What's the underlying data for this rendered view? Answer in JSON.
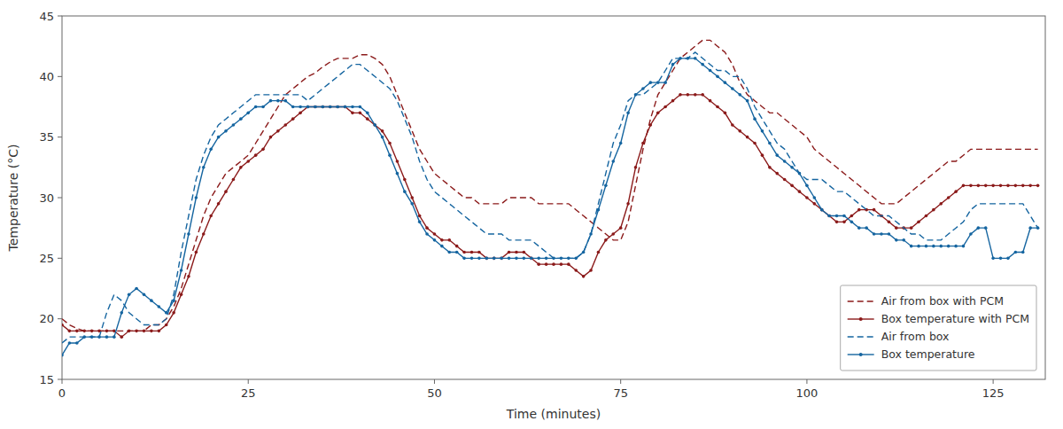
{
  "chart_data": {
    "type": "line",
    "xlabel": "Time (minutes)",
    "ylabel": "Temperature (°C)",
    "xlim": [
      0,
      132
    ],
    "ylim": [
      15,
      45
    ],
    "xticks": [
      0,
      25,
      50,
      75,
      100,
      125
    ],
    "yticks": [
      15,
      20,
      25,
      30,
      35,
      40,
      45
    ],
    "grid": false,
    "legend": "lower right",
    "x": [
      0,
      1,
      2,
      3,
      4,
      5,
      6,
      7,
      8,
      9,
      10,
      11,
      12,
      13,
      14,
      15,
      16,
      17,
      18,
      19,
      20,
      21,
      22,
      23,
      24,
      25,
      26,
      27,
      28,
      29,
      30,
      31,
      32,
      33,
      34,
      35,
      36,
      37,
      38,
      39,
      40,
      41,
      42,
      43,
      44,
      45,
      46,
      47,
      48,
      49,
      50,
      51,
      52,
      53,
      54,
      55,
      56,
      57,
      58,
      59,
      60,
      61,
      62,
      63,
      64,
      65,
      66,
      67,
      68,
      69,
      70,
      71,
      72,
      73,
      74,
      75,
      76,
      77,
      78,
      79,
      80,
      81,
      82,
      83,
      84,
      85,
      86,
      87,
      88,
      89,
      90,
      91,
      92,
      93,
      94,
      95,
      96,
      97,
      98,
      99,
      100,
      101,
      102,
      103,
      104,
      105,
      106,
      107,
      108,
      109,
      110,
      111,
      112,
      113,
      114,
      115,
      116,
      117,
      118,
      119,
      120,
      121,
      122,
      123,
      124,
      125,
      126,
      127,
      128,
      129,
      130,
      131
    ],
    "series": [
      {
        "name": "Air from box with PCM",
        "color": "#8B1A1A",
        "line_style": "dashed",
        "values": [
          20.0,
          19.5,
          19.2,
          19.0,
          19.0,
          19.0,
          19.0,
          19.0,
          19.0,
          19.0,
          19.0,
          19.0,
          19.5,
          19.5,
          20.0,
          21.0,
          22.5,
          24.5,
          26.5,
          28.5,
          30.0,
          31.0,
          32.0,
          32.5,
          33.0,
          33.5,
          34.5,
          35.5,
          36.5,
          37.5,
          38.5,
          39.0,
          39.5,
          40.0,
          40.3,
          40.8,
          41.2,
          41.5,
          41.5,
          41.5,
          41.8,
          41.8,
          41.5,
          41.0,
          40.0,
          38.5,
          37.0,
          35.5,
          34.0,
          33.0,
          32.0,
          31.5,
          31.0,
          30.5,
          30.0,
          30.0,
          29.5,
          29.5,
          29.5,
          29.5,
          30.0,
          30.0,
          30.0,
          30.0,
          29.5,
          29.5,
          29.5,
          29.5,
          29.5,
          29.0,
          28.5,
          28.0,
          27.5,
          27.0,
          26.5,
          26.5,
          28.0,
          31.0,
          34.0,
          36.5,
          38.5,
          39.5,
          40.5,
          41.5,
          42.0,
          42.5,
          43.0,
          43.0,
          42.5,
          42.0,
          41.0,
          39.5,
          38.5,
          38.0,
          37.5,
          37.0,
          37.0,
          36.5,
          36.0,
          35.5,
          35.0,
          34.0,
          33.5,
          33.0,
          32.5,
          32.0,
          31.5,
          31.0,
          30.5,
          30.0,
          29.5,
          29.5,
          29.5,
          30.0,
          30.5,
          31.0,
          31.5,
          32.0,
          32.5,
          33.0,
          33.0,
          33.5,
          34.0,
          34.0,
          34.0,
          34.0,
          34.0,
          34.0,
          34.0,
          34.0,
          34.0,
          34.0
        ]
      },
      {
        "name": "Box temperature with PCM",
        "color": "#8B1A1A",
        "line_style": "solid",
        "marker": "dot",
        "values": [
          19.5,
          19.0,
          19.0,
          19.0,
          19.0,
          19.0,
          19.0,
          19.0,
          18.5,
          19.0,
          19.0,
          19.0,
          19.0,
          19.0,
          19.5,
          20.5,
          22.0,
          23.5,
          25.5,
          27.0,
          28.5,
          29.5,
          30.5,
          31.5,
          32.5,
          33.0,
          33.5,
          34.0,
          35.0,
          35.5,
          36.0,
          36.5,
          37.0,
          37.5,
          37.5,
          37.5,
          37.5,
          37.5,
          37.5,
          37.0,
          37.0,
          36.5,
          36.0,
          35.5,
          34.5,
          33.0,
          31.5,
          30.0,
          28.5,
          27.5,
          27.0,
          26.5,
          26.5,
          26.0,
          25.5,
          25.5,
          25.5,
          25.0,
          25.0,
          25.0,
          25.5,
          25.5,
          25.5,
          25.0,
          24.5,
          24.5,
          24.5,
          24.5,
          24.5,
          24.0,
          23.5,
          24.0,
          25.5,
          26.5,
          27.0,
          27.5,
          29.5,
          32.5,
          34.5,
          36.0,
          37.0,
          37.5,
          38.0,
          38.5,
          38.5,
          38.5,
          38.5,
          38.0,
          37.5,
          37.0,
          36.0,
          35.5,
          35.0,
          34.5,
          33.5,
          32.5,
          32.0,
          31.5,
          31.0,
          30.5,
          30.0,
          29.5,
          29.0,
          28.5,
          28.0,
          28.0,
          28.5,
          29.0,
          29.0,
          29.0,
          28.5,
          28.0,
          27.5,
          27.5,
          27.5,
          28.0,
          28.5,
          29.0,
          29.5,
          30.0,
          30.5,
          31.0,
          31.0,
          31.0,
          31.0,
          31.0,
          31.0,
          31.0,
          31.0,
          31.0,
          31.0,
          31.0
        ]
      },
      {
        "name": "Air from box",
        "color": "#1565A0",
        "line_style": "dashed",
        "values": [
          18.0,
          18.5,
          18.5,
          18.5,
          18.5,
          18.5,
          20.5,
          22.0,
          21.5,
          20.5,
          20.0,
          19.5,
          19.5,
          19.5,
          20.0,
          22.0,
          25.5,
          28.5,
          31.5,
          33.5,
          35.0,
          36.0,
          36.5,
          37.0,
          37.5,
          38.0,
          38.5,
          38.5,
          38.5,
          38.5,
          38.5,
          38.5,
          38.5,
          38.0,
          38.5,
          39.0,
          39.5,
          40.0,
          40.5,
          41.0,
          41.0,
          40.5,
          40.0,
          39.5,
          39.0,
          38.0,
          36.5,
          35.0,
          33.0,
          31.5,
          30.5,
          30.0,
          29.5,
          29.0,
          28.5,
          28.0,
          27.5,
          27.0,
          27.0,
          27.0,
          26.5,
          26.5,
          26.5,
          26.5,
          26.0,
          25.5,
          25.0,
          25.0,
          25.0,
          25.0,
          25.5,
          27.0,
          29.5,
          32.0,
          34.5,
          36.0,
          38.0,
          38.5,
          38.5,
          39.0,
          39.5,
          40.5,
          41.5,
          41.5,
          41.5,
          42.0,
          41.5,
          41.0,
          40.5,
          40.5,
          40.0,
          40.0,
          39.0,
          37.5,
          36.5,
          35.5,
          34.5,
          34.0,
          33.0,
          32.0,
          31.5,
          31.5,
          31.5,
          31.0,
          30.5,
          30.5,
          30.0,
          29.5,
          29.0,
          28.5,
          28.5,
          28.5,
          28.0,
          27.5,
          27.0,
          27.0,
          26.5,
          26.5,
          26.5,
          27.0,
          27.5,
          28.0,
          29.0,
          29.5,
          29.5,
          29.5,
          29.5,
          29.5,
          29.5,
          29.5,
          28.5,
          27.5
        ]
      },
      {
        "name": "Box temperature",
        "color": "#1565A0",
        "line_style": "solid",
        "marker": "dot",
        "values": [
          17.0,
          18.0,
          18.0,
          18.5,
          18.5,
          18.5,
          18.5,
          18.5,
          20.5,
          22.0,
          22.5,
          22.0,
          21.5,
          21.0,
          20.5,
          21.5,
          24.0,
          27.0,
          30.0,
          32.5,
          34.0,
          35.0,
          35.5,
          36.0,
          36.5,
          37.0,
          37.5,
          37.5,
          38.0,
          38.0,
          38.0,
          37.5,
          37.5,
          37.5,
          37.5,
          37.5,
          37.5,
          37.5,
          37.5,
          37.5,
          37.5,
          37.0,
          36.0,
          35.0,
          33.5,
          32.0,
          30.5,
          29.5,
          28.0,
          27.0,
          26.5,
          26.0,
          25.5,
          25.5,
          25.0,
          25.0,
          25.0,
          25.0,
          25.0,
          25.0,
          25.0,
          25.0,
          25.0,
          25.0,
          25.0,
          25.0,
          25.0,
          25.0,
          25.0,
          25.0,
          25.5,
          27.0,
          29.0,
          31.0,
          33.0,
          34.5,
          37.0,
          38.5,
          39.0,
          39.5,
          39.5,
          39.5,
          41.0,
          41.5,
          41.5,
          41.5,
          41.0,
          40.5,
          40.0,
          39.5,
          39.0,
          38.5,
          38.0,
          36.5,
          35.5,
          34.5,
          33.5,
          33.0,
          32.5,
          32.0,
          31.0,
          30.0,
          29.0,
          28.5,
          28.5,
          28.5,
          28.0,
          27.5,
          27.5,
          27.0,
          27.0,
          27.0,
          26.5,
          26.5,
          26.0,
          26.0,
          26.0,
          26.0,
          26.0,
          26.0,
          26.0,
          26.0,
          27.0,
          27.5,
          27.5,
          25.0,
          25.0,
          25.0,
          25.5,
          25.5,
          27.5,
          27.5
        ]
      }
    ]
  }
}
